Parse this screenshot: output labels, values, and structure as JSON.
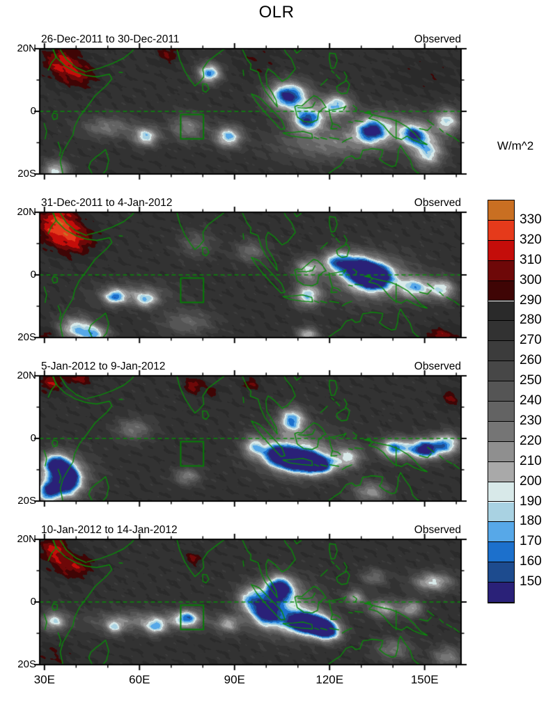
{
  "title": "OLR",
  "colorbar": {
    "title": "W/m^2",
    "tick_labels": [
      330,
      320,
      310,
      300,
      290,
      280,
      270,
      260,
      250,
      240,
      230,
      220,
      210,
      200,
      190,
      180,
      170,
      160,
      150
    ]
  },
  "axes": {
    "y_tick_labels": [
      "20N",
      "0",
      "20S"
    ],
    "x_tick_labels": [
      "30E",
      "60E",
      "90E",
      "120E",
      "150E"
    ]
  },
  "chart_data": {
    "type": "heatmap",
    "variable": "OLR",
    "units": "W/m^2",
    "lon_range": [
      28.5,
      161.5
    ],
    "lat_range": [
      -20,
      20
    ],
    "x_ticks_major": [
      30,
      60,
      90,
      120,
      150
    ],
    "x_tick_step_minor": 10,
    "y_ticks_major": [
      20,
      0,
      -20
    ],
    "y_tick_step_minor": 10,
    "equator_dashed_line": true,
    "region_box": {
      "lon": [
        73,
        80.2
      ],
      "lat": [
        -8.8,
        -1
      ]
    },
    "coastline_color": "#0a8a0a",
    "box_color": "#067d06",
    "levels": [
      150,
      160,
      170,
      180,
      190,
      200,
      210,
      220,
      230,
      240,
      250,
      260,
      270,
      280,
      290,
      300,
      310,
      320,
      330
    ],
    "colors_low_to_high": [
      "#2A2178",
      "#1D4B8E",
      "#1C70CC",
      "#57A8E8",
      "#A9D2E2",
      "#D8E9E9",
      "#A9A9A9",
      "#8F8F8F",
      "#757575",
      "#636363",
      "#555555",
      "#474747",
      "#3C3C3C",
      "#323232",
      "#2A2A2A",
      "#3F0505",
      "#6E0808",
      "#C40D0A",
      "#E53A1B",
      "#C96F22"
    ],
    "panels": [
      {
        "date_range": "26-Dec-2011 to 30-Dec-2011",
        "source": "Observed",
        "base": 277,
        "features": [
          [
            35,
            16,
            34,
            4,
            3.5
          ],
          [
            41,
            11.5,
            26,
            4,
            3
          ],
          [
            69,
            18.5,
            22,
            2.5,
            2.5
          ],
          [
            97,
            16,
            10,
            5,
            4
          ],
          [
            150,
            12,
            8,
            8,
            5
          ],
          [
            82,
            12.3,
            -112,
            2.6,
            2.2
          ],
          [
            107,
            5,
            -138,
            4.5,
            3.2
          ],
          [
            113,
            -2.5,
            -120,
            3.5,
            2.6
          ],
          [
            122,
            2,
            -100,
            3.5,
            2.6
          ],
          [
            133,
            -6,
            -100,
            3.5,
            2.8
          ],
          [
            146.5,
            -7.5,
            -95,
            3,
            2.5
          ],
          [
            151,
            -13,
            -90,
            3.5,
            3.5
          ],
          [
            157,
            -3,
            -85,
            3,
            3
          ],
          [
            62,
            -8,
            -92,
            2.8,
            2.2
          ],
          [
            88,
            -8,
            -100,
            3,
            2.4
          ],
          [
            33.5,
            -19,
            -80,
            3,
            2.5
          ],
          [
            75,
            -5,
            -55,
            4,
            3
          ],
          [
            50,
            -5,
            -50,
            6,
            2.5
          ],
          [
            120,
            -10,
            -50,
            12,
            4
          ],
          [
            140,
            -5,
            -45,
            8,
            4
          ]
        ]
      },
      {
        "date_range": "31-Dec-2011 to 4-Jan-2012",
        "source": "Observed",
        "base": 277,
        "features": [
          [
            34,
            16.5,
            46,
            4.5,
            4.5
          ],
          [
            40,
            11,
            30,
            4.5,
            3.5
          ],
          [
            31,
            -19.5,
            26,
            2,
            2
          ],
          [
            155,
            -19.8,
            30,
            3.5,
            2.2
          ],
          [
            134,
            -0.5,
            -138,
            4,
            3
          ],
          [
            128.5,
            2.5,
            -100,
            3.5,
            3
          ],
          [
            122,
            4.5,
            -90,
            3,
            2.5
          ],
          [
            113,
            -6.5,
            -95,
            3,
            2.5
          ],
          [
            113,
            2,
            -75,
            3,
            2.5
          ],
          [
            147,
            -4,
            -85,
            3.5,
            2.5
          ],
          [
            155.5,
            -4.5,
            -85,
            3,
            2.5
          ],
          [
            133,
            -1,
            -65,
            9,
            5
          ],
          [
            95,
            7.5,
            -45,
            3.5,
            2.5
          ],
          [
            52,
            -7,
            -85,
            2.5,
            1.8
          ],
          [
            62,
            -8,
            -70,
            2.5,
            1.8
          ],
          [
            40,
            -17,
            -90,
            4,
            2.8
          ],
          [
            46,
            -19,
            -80,
            3,
            2
          ],
          [
            58,
            -6,
            -45,
            8,
            2.5
          ],
          [
            113,
            -19,
            -75,
            2.5,
            1.8
          ],
          [
            75,
            -15,
            -40,
            6,
            3
          ],
          [
            78,
            10,
            -35,
            4,
            3
          ]
        ]
      },
      {
        "date_range": "5-Jan-2012 to 9-Jan-2012",
        "source": "Observed",
        "base": 277,
        "features": [
          [
            32,
            18,
            30,
            2.5,
            2.5
          ],
          [
            41,
            19.8,
            28,
            3,
            2
          ],
          [
            77,
            17,
            30,
            2.2,
            1.8
          ],
          [
            83,
            15,
            20,
            1.5,
            1.2
          ],
          [
            95,
            17.5,
            24,
            2,
            1.5
          ],
          [
            158,
            13,
            24,
            2,
            2
          ],
          [
            37,
            -13,
            -132,
            3,
            3.5
          ],
          [
            33,
            -8,
            -100,
            2.8,
            2.5
          ],
          [
            31,
            -17,
            -105,
            2.5,
            2.5
          ],
          [
            36,
            -12,
            -60,
            6,
            5
          ],
          [
            108,
            6,
            -105,
            3,
            2.8
          ],
          [
            110,
            -7,
            -138,
            4.5,
            2.8
          ],
          [
            117,
            -8.5,
            -110,
            3.5,
            2.2
          ],
          [
            103,
            -5,
            -100,
            3,
            2.5
          ],
          [
            96,
            -2.5,
            -75,
            2.5,
            2.5
          ],
          [
            110,
            -4,
            -60,
            9,
            5
          ],
          [
            126,
            -6,
            -70,
            3,
            2.5
          ],
          [
            140,
            -3,
            -85,
            3,
            2.2
          ],
          [
            150,
            -3.5,
            -95,
            3,
            2.2
          ],
          [
            157,
            -1.5,
            -85,
            3,
            2.5
          ],
          [
            148,
            -3,
            -55,
            7,
            2.5
          ],
          [
            133,
            -17,
            -60,
            4,
            2.5
          ],
          [
            58,
            3,
            -50,
            4,
            2.5
          ],
          [
            75,
            -12,
            -55,
            3,
            2
          ]
        ]
      },
      {
        "date_range": "10-Jan-2012 to 14-Jan-2012",
        "source": "Observed",
        "base": 277,
        "features": [
          [
            33,
            17,
            36,
            3,
            3.5
          ],
          [
            39.5,
            11.5,
            30,
            4,
            2.8
          ],
          [
            77,
            14,
            26,
            1.8,
            1.5
          ],
          [
            33,
            -17,
            12,
            4,
            3
          ],
          [
            104,
            4.5,
            -135,
            3.2,
            2.8
          ],
          [
            112,
            -6.5,
            -140,
            4.5,
            2.5
          ],
          [
            117,
            -8,
            -110,
            3.5,
            2.2
          ],
          [
            100,
            -3.5,
            -105,
            3,
            3
          ],
          [
            95,
            1,
            -85,
            3,
            3
          ],
          [
            106,
            -2,
            -70,
            7.5,
            5.5
          ],
          [
            120,
            -10,
            -80,
            3,
            2.2
          ],
          [
            62,
            -6,
            -52,
            13,
            2.4
          ],
          [
            75,
            -5,
            -88,
            2.8,
            2
          ],
          [
            65,
            -8,
            -70,
            2.2,
            1.8
          ],
          [
            33,
            -6,
            -82,
            2.8,
            2.2
          ],
          [
            52,
            -8,
            -62,
            2,
            1.8
          ],
          [
            88,
            -7,
            -62,
            2.8,
            2
          ],
          [
            128,
            1.5,
            -68,
            2.2,
            1.8
          ],
          [
            137,
            -2,
            -72,
            3.5,
            2.2
          ],
          [
            146,
            -2,
            -68,
            2.5,
            2
          ],
          [
            152.5,
            6.5,
            -80,
            4.5,
            2.2
          ],
          [
            134,
            8,
            -45,
            3,
            2
          ],
          [
            140,
            -15,
            -50,
            4,
            2.5
          ],
          [
            157,
            -17.5,
            -55,
            3.5,
            2.5
          ]
        ]
      }
    ]
  }
}
